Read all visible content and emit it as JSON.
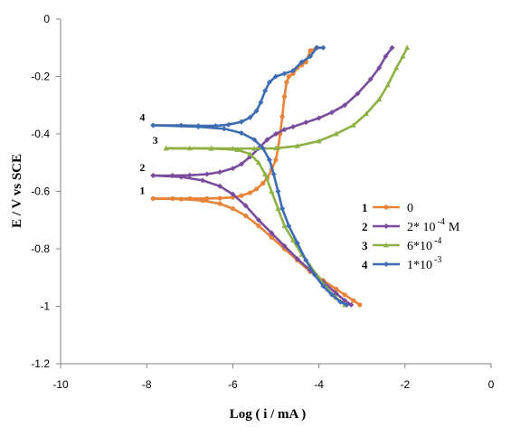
{
  "chart_data": {
    "type": "line",
    "title": "",
    "xlabel": "Log ( i / mA )",
    "ylabel": "E / V vs SCE",
    "xlim": [
      -10,
      0
    ],
    "ylim": [
      -1.2,
      0
    ],
    "xticks": [
      "-10",
      "-8",
      "-6",
      "-4",
      "-2",
      "0"
    ],
    "yticks": [
      "0",
      "-0.2",
      "-0.4",
      "-0.6",
      "-0.8",
      "-1",
      "-1.2"
    ],
    "grid": false,
    "legend_position": "right",
    "series": [
      {
        "name": "1",
        "legend_label": "0",
        "legend_sup": "",
        "color": "#E8833A",
        "marker": "circle",
        "tag": "1",
        "points": [
          [
            -7.85,
            -0.625
          ],
          [
            -7.4,
            -0.625
          ],
          [
            -7.0,
            -0.625
          ],
          [
            -6.6,
            -0.625
          ],
          [
            -6.3,
            -0.624
          ],
          [
            -6.0,
            -0.621
          ],
          [
            -5.8,
            -0.615
          ],
          [
            -5.6,
            -0.605
          ],
          [
            -5.45,
            -0.592
          ],
          [
            -5.3,
            -0.572
          ],
          [
            -5.2,
            -0.553
          ],
          [
            -5.1,
            -0.525
          ],
          [
            -5.0,
            -0.49
          ],
          [
            -4.95,
            -0.45
          ],
          [
            -4.9,
            -0.4
          ],
          [
            -4.85,
            -0.34
          ],
          [
            -4.8,
            -0.27
          ],
          [
            -4.75,
            -0.22
          ],
          [
            -4.7,
            -0.2
          ],
          [
            -4.6,
            -0.19
          ],
          [
            -4.5,
            -0.17
          ],
          [
            -4.4,
            -0.16
          ],
          [
            -4.3,
            -0.15
          ],
          [
            -4.2,
            -0.11
          ],
          [
            -4.05,
            -0.1
          ],
          [
            -7.85,
            -0.625
          ],
          [
            -7.2,
            -0.627
          ],
          [
            -6.7,
            -0.632
          ],
          [
            -6.3,
            -0.643
          ],
          [
            -6.0,
            -0.66
          ],
          [
            -5.7,
            -0.685
          ],
          [
            -5.4,
            -0.72
          ],
          [
            -5.1,
            -0.76
          ],
          [
            -4.8,
            -0.8
          ],
          [
            -4.5,
            -0.84
          ],
          [
            -4.2,
            -0.88
          ],
          [
            -3.9,
            -0.91
          ],
          [
            -3.6,
            -0.94
          ],
          [
            -3.4,
            -0.96
          ],
          [
            -3.2,
            -0.98
          ],
          [
            -3.05,
            -0.995
          ]
        ]
      },
      {
        "name": "2",
        "legend_label": "2* 10",
        "legend_sup": "-4",
        "legend_suffix": "M",
        "color": "#7B4C9E",
        "marker": "diamond",
        "tag": "2",
        "points": [
          [
            -7.85,
            -0.545
          ],
          [
            -7.4,
            -0.545
          ],
          [
            -7.0,
            -0.544
          ],
          [
            -6.6,
            -0.54
          ],
          [
            -6.3,
            -0.533
          ],
          [
            -6.0,
            -0.52
          ],
          [
            -5.8,
            -0.505
          ],
          [
            -5.6,
            -0.48
          ],
          [
            -5.4,
            -0.45
          ],
          [
            -5.2,
            -0.42
          ],
          [
            -5.0,
            -0.4
          ],
          [
            -4.8,
            -0.385
          ],
          [
            -4.6,
            -0.375
          ],
          [
            -4.3,
            -0.36
          ],
          [
            -4.0,
            -0.345
          ],
          [
            -3.7,
            -0.325
          ],
          [
            -3.4,
            -0.3
          ],
          [
            -3.1,
            -0.26
          ],
          [
            -2.8,
            -0.21
          ],
          [
            -2.6,
            -0.17
          ],
          [
            -2.45,
            -0.13
          ],
          [
            -2.3,
            -0.1
          ],
          [
            -7.85,
            -0.545
          ],
          [
            -7.2,
            -0.55
          ],
          [
            -6.7,
            -0.562
          ],
          [
            -6.3,
            -0.582
          ],
          [
            -6.0,
            -0.61
          ],
          [
            -5.7,
            -0.65
          ],
          [
            -5.4,
            -0.7
          ],
          [
            -5.1,
            -0.745
          ],
          [
            -4.8,
            -0.79
          ],
          [
            -4.5,
            -0.835
          ],
          [
            -4.2,
            -0.875
          ],
          [
            -3.9,
            -0.915
          ],
          [
            -3.6,
            -0.955
          ],
          [
            -3.4,
            -0.98
          ],
          [
            -3.25,
            -0.995
          ]
        ]
      },
      {
        "name": "3",
        "legend_label": "6*10",
        "legend_sup": "-4",
        "legend_suffix": "",
        "color": "#8DB145",
        "marker": "triangle",
        "tag": "3",
        "points": [
          [
            -7.55,
            -0.45
          ],
          [
            -7.0,
            -0.45
          ],
          [
            -6.5,
            -0.45
          ],
          [
            -6.0,
            -0.451
          ],
          [
            -5.5,
            -0.451
          ],
          [
            -5.0,
            -0.45
          ],
          [
            -4.5,
            -0.442
          ],
          [
            -4.0,
            -0.425
          ],
          [
            -3.6,
            -0.4
          ],
          [
            -3.2,
            -0.37
          ],
          [
            -2.9,
            -0.33
          ],
          [
            -2.6,
            -0.28
          ],
          [
            -2.4,
            -0.23
          ],
          [
            -2.2,
            -0.17
          ],
          [
            -2.05,
            -0.13
          ],
          [
            -1.95,
            -0.1
          ],
          [
            -7.55,
            -0.45
          ],
          [
            -6.5,
            -0.451
          ],
          [
            -5.9,
            -0.455
          ],
          [
            -5.6,
            -0.47
          ],
          [
            -5.4,
            -0.5
          ],
          [
            -5.25,
            -0.54
          ],
          [
            -5.1,
            -0.6
          ],
          [
            -4.95,
            -0.66
          ],
          [
            -4.8,
            -0.72
          ],
          [
            -4.6,
            -0.77
          ],
          [
            -4.4,
            -0.82
          ],
          [
            -4.2,
            -0.86
          ],
          [
            -4.0,
            -0.9
          ],
          [
            -3.8,
            -0.94
          ],
          [
            -3.6,
            -0.97
          ],
          [
            -3.4,
            -0.995
          ]
        ]
      },
      {
        "name": "4",
        "legend_label": "1*10",
        "legend_sup": "-3",
        "legend_suffix": "",
        "color": "#3E6CB3",
        "marker": "diamond",
        "tag": "4",
        "points": [
          [
            -7.85,
            -0.37
          ],
          [
            -7.2,
            -0.37
          ],
          [
            -6.8,
            -0.372
          ],
          [
            -6.4,
            -0.372
          ],
          [
            -6.1,
            -0.368
          ],
          [
            -5.8,
            -0.358
          ],
          [
            -5.6,
            -0.343
          ],
          [
            -5.45,
            -0.32
          ],
          [
            -5.35,
            -0.29
          ],
          [
            -5.25,
            -0.25
          ],
          [
            -5.15,
            -0.22
          ],
          [
            -5.0,
            -0.2
          ],
          [
            -4.8,
            -0.19
          ],
          [
            -4.6,
            -0.18
          ],
          [
            -4.4,
            -0.15
          ],
          [
            -4.2,
            -0.13
          ],
          [
            -4.05,
            -0.1
          ],
          [
            -3.9,
            -0.1
          ],
          [
            -7.85,
            -0.37
          ],
          [
            -6.8,
            -0.375
          ],
          [
            -6.2,
            -0.382
          ],
          [
            -5.8,
            -0.397
          ],
          [
            -5.5,
            -0.42
          ],
          [
            -5.3,
            -0.45
          ],
          [
            -5.15,
            -0.49
          ],
          [
            -5.05,
            -0.54
          ],
          [
            -4.95,
            -0.6
          ],
          [
            -4.85,
            -0.66
          ],
          [
            -4.7,
            -0.72
          ],
          [
            -4.5,
            -0.78
          ],
          [
            -4.3,
            -0.84
          ],
          [
            -4.1,
            -0.89
          ],
          [
            -3.9,
            -0.93
          ],
          [
            -3.7,
            -0.96
          ],
          [
            -3.5,
            -0.985
          ],
          [
            -3.35,
            -0.995
          ]
        ]
      }
    ]
  }
}
